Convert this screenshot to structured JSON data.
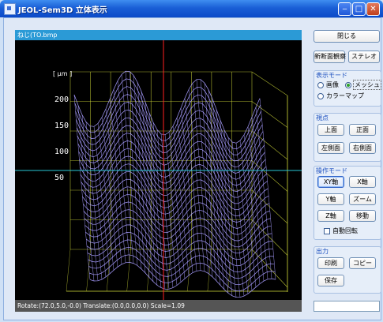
{
  "window": {
    "title": "JEOL-Sem3D 立体表示"
  },
  "canvas": {
    "filename": "ねじ(TO.bmp",
    "status": "Rotate:(72.0,5.0,-0.0) Translate:(0.0,0.0,0.0) Scale=1.09",
    "unit_label": "[ μm ]",
    "z_ticks": [
      "200",
      "150",
      "100",
      "50"
    ]
  },
  "buttons": {
    "close": "閉じる",
    "new_section": "新断面観察",
    "stereo": "ステレオ"
  },
  "display_mode": {
    "label": "表示モード",
    "options": [
      "画像",
      "メッシュ",
      "カラーマップ"
    ],
    "selected": "メッシュ"
  },
  "viewpoint": {
    "label": "視点",
    "top": "上面",
    "front": "正面",
    "left_side": "左側面",
    "right_side": "右側面"
  },
  "operation_mode": {
    "label": "操作モード",
    "xy_axis": "XY軸",
    "x_axis": "X軸",
    "y_axis": "Y軸",
    "zoom": "ズーム",
    "z_axis": "Z軸",
    "move": "移動",
    "auto_rotate": "自動回転",
    "auto_rotate_checked": false,
    "active": "XY軸"
  },
  "output": {
    "label": "出力",
    "print": "印刷",
    "copy": "コピー",
    "save": "保存"
  },
  "colors": {
    "mesh": "#a79cff",
    "box": "#d6df3a",
    "crosshair_v": "#ff2020",
    "crosshair_h": "#27c7d6"
  }
}
